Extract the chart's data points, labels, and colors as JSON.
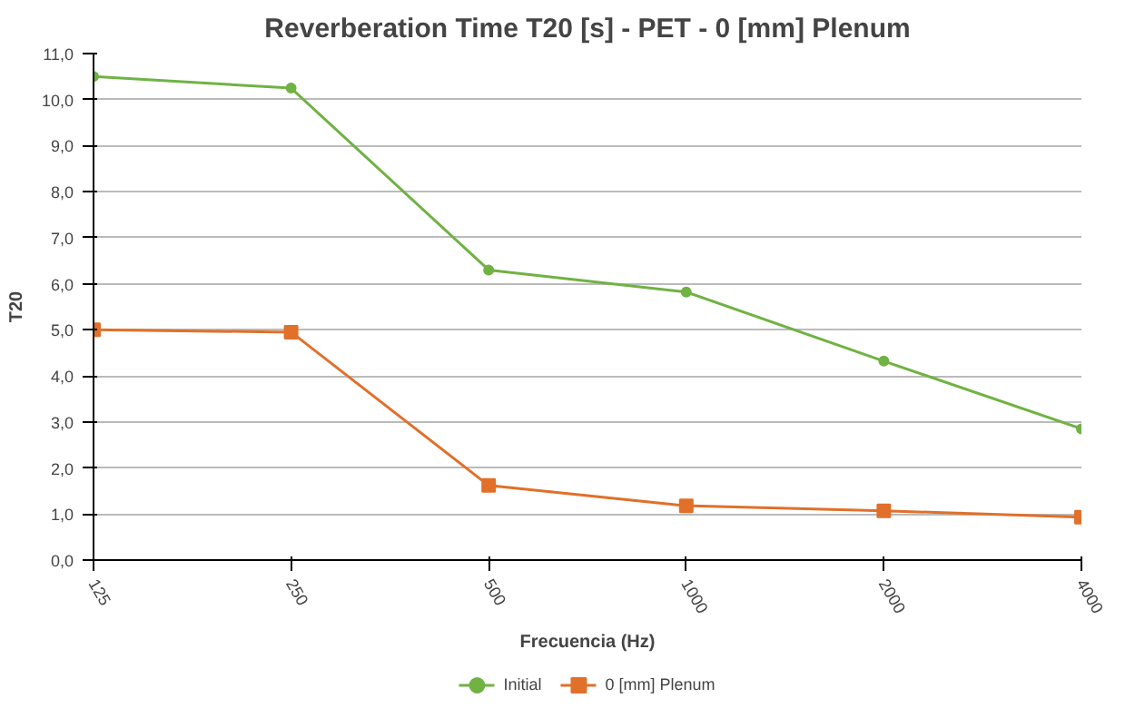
{
  "chart_data": {
    "type": "line",
    "title": "Reverberation Time T20 [s] - PET - 0 [mm] Plenum",
    "xlabel": "Frecuencia (Hz)",
    "ylabel": "T20",
    "categories": [
      "125",
      "250",
      "500",
      "1000",
      "2000",
      "4000"
    ],
    "series": [
      {
        "name": "Initial",
        "color": "#70b244",
        "marker": "circle",
        "values": [
          10.5,
          10.25,
          6.3,
          5.82,
          4.32,
          2.85
        ]
      },
      {
        "name": "0 [mm] Plenum",
        "color": "#e0702a",
        "marker": "square",
        "values": [
          5.0,
          4.95,
          1.62,
          1.18,
          1.07,
          0.93
        ]
      }
    ],
    "ylim": [
      0,
      11
    ],
    "yticks": [
      {
        "value": 0,
        "label": "0,0"
      },
      {
        "value": 1,
        "label": "1,0"
      },
      {
        "value": 2,
        "label": "2,0"
      },
      {
        "value": 3,
        "label": "3,0"
      },
      {
        "value": 4,
        "label": "4,0"
      },
      {
        "value": 5,
        "label": "5,0"
      },
      {
        "value": 6,
        "label": "6,0"
      },
      {
        "value": 7,
        "label": "7,0"
      },
      {
        "value": 8,
        "label": "8,0"
      },
      {
        "value": 9,
        "label": "9,0"
      },
      {
        "value": 10,
        "label": "10,0"
      },
      {
        "value": 11,
        "label": "11,0"
      }
    ],
    "grid": "y",
    "legend": "bottom",
    "line_style": "solid"
  }
}
